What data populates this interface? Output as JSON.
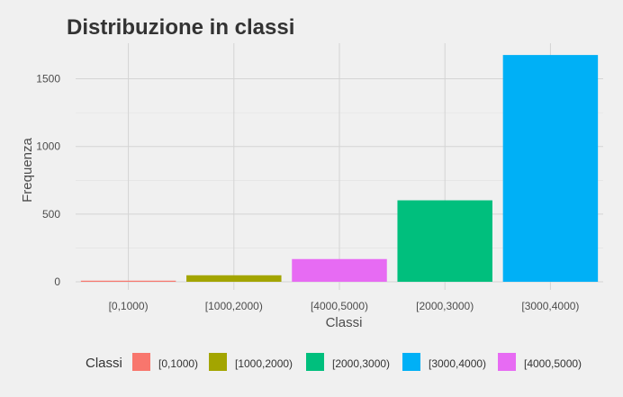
{
  "chart_data": {
    "type": "bar",
    "title": "Distribuzione in classi",
    "xlabel": "Classi",
    "ylabel": "Frequenza",
    "categories": [
      "[0,1000)",
      "[1000,2000)",
      "[4000,5000)",
      "[2000,3000)",
      "[3000,4000)"
    ],
    "values": [
      8,
      48,
      168,
      602,
      1676
    ],
    "bar_colors": [
      "#F8766D",
      "#A3A500",
      "#E76BF3",
      "#00BF7D",
      "#00B0F6"
    ],
    "ylim": [
      0,
      1760
    ],
    "yticks": [
      0,
      500,
      1000,
      1500
    ],
    "grid": true,
    "legend": {
      "title": "Classi",
      "position": "bottom",
      "entries": [
        {
          "label": "[0,1000)",
          "color": "#F8766D"
        },
        {
          "label": "[1000,2000)",
          "color": "#A3A500"
        },
        {
          "label": "[2000,3000)",
          "color": "#00BF7D"
        },
        {
          "label": "[3000,4000)",
          "color": "#00B0F6"
        },
        {
          "label": "[4000,5000)",
          "color": "#E76BF3"
        }
      ]
    }
  }
}
